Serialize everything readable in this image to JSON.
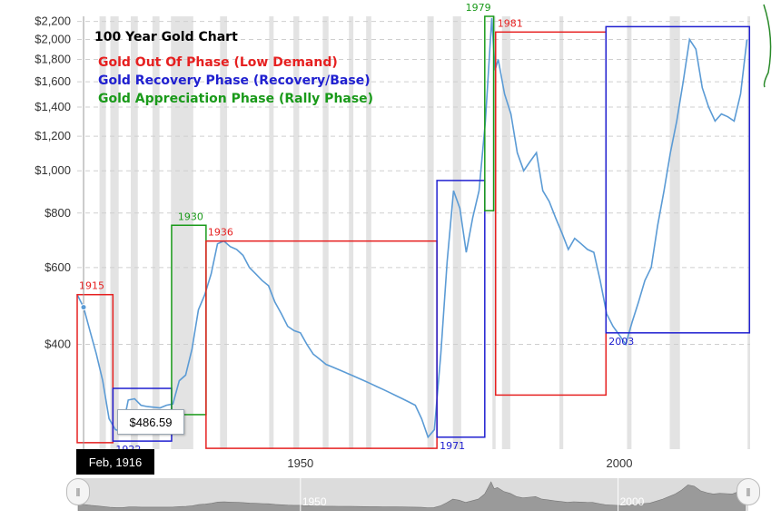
{
  "chart_data": {
    "type": "line",
    "title": "100 Year Gold Chart",
    "legend": [
      {
        "label": "Gold Out Of Phase (Low Demand)",
        "color": "#e62020"
      },
      {
        "label": "Gold Recovery Phase (Recovery/Base)",
        "color": "#2020d0"
      },
      {
        "label": "Gold Appreciation Phase (Rally Phase)",
        "color": "#1a9a1a"
      }
    ],
    "y_ticks": [
      {
        "value": 400,
        "label": "$400"
      },
      {
        "value": 600,
        "label": "$600"
      },
      {
        "value": 800,
        "label": "$800"
      },
      {
        "value": 1000,
        "label": "$1,000"
      },
      {
        "value": 1200,
        "label": "$1,200"
      },
      {
        "value": 1400,
        "label": "$1,400"
      },
      {
        "value": 1600,
        "label": "$1,600"
      },
      {
        "value": 1800,
        "label": "$1,800"
      },
      {
        "value": 2000,
        "label": "$2,000"
      },
      {
        "value": 2200,
        "label": "$2,200"
      }
    ],
    "x_ticks": [
      {
        "value": 1950,
        "label": "1950"
      },
      {
        "value": 2000,
        "label": "2000"
      }
    ],
    "ylim": [
      230,
      2260
    ],
    "xlim": [
      1915,
      2020.5
    ],
    "y_scale": "log",
    "grid": "horizontal-dashed",
    "series": [
      {
        "color": "#5b9bd5",
        "points": [
          [
            1915,
            520
          ],
          [
            1916,
            486.59
          ],
          [
            1917,
            430
          ],
          [
            1918,
            380
          ],
          [
            1919,
            330
          ],
          [
            1920,
            270
          ],
          [
            1921,
            255
          ],
          [
            1922,
            252
          ],
          [
            1923,
            298
          ],
          [
            1924,
            300
          ],
          [
            1925,
            290
          ],
          [
            1926,
            288
          ],
          [
            1927,
            287
          ],
          [
            1928,
            286
          ],
          [
            1929,
            290
          ],
          [
            1930,
            292
          ],
          [
            1931,
            330
          ],
          [
            1932,
            340
          ],
          [
            1933,
            390
          ],
          [
            1934,
            480
          ],
          [
            1935,
            520
          ],
          [
            1936,
            580
          ],
          [
            1937,
            680
          ],
          [
            1938,
            690
          ],
          [
            1939,
            670
          ],
          [
            1940,
            660
          ],
          [
            1941,
            640
          ],
          [
            1942,
            600
          ],
          [
            1943,
            580
          ],
          [
            1944,
            560
          ],
          [
            1945,
            545
          ],
          [
            1946,
            500
          ],
          [
            1947,
            470
          ],
          [
            1948,
            440
          ],
          [
            1949,
            430
          ],
          [
            1950,
            425
          ],
          [
            1951,
            400
          ],
          [
            1952,
            380
          ],
          [
            1953,
            370
          ],
          [
            1954,
            360
          ],
          [
            1955,
            355
          ],
          [
            1956,
            350
          ],
          [
            1957,
            345
          ],
          [
            1958,
            340
          ],
          [
            1959,
            335
          ],
          [
            1960,
            330
          ],
          [
            1961,
            325
          ],
          [
            1962,
            320
          ],
          [
            1963,
            315
          ],
          [
            1964,
            310
          ],
          [
            1965,
            305
          ],
          [
            1966,
            300
          ],
          [
            1967,
            295
          ],
          [
            1968,
            290
          ],
          [
            1969,
            270
          ],
          [
            1970,
            245
          ],
          [
            1971,
            255
          ],
          [
            1972,
            380
          ],
          [
            1973,
            620
          ],
          [
            1974,
            900
          ],
          [
            1975,
            820
          ],
          [
            1976,
            650
          ],
          [
            1977,
            780
          ],
          [
            1978,
            900
          ],
          [
            1979,
            1300
          ],
          [
            1980,
            2240
          ],
          [
            1980.5,
            1700
          ],
          [
            1981,
            1800
          ],
          [
            1982,
            1500
          ],
          [
            1983,
            1350
          ],
          [
            1984,
            1100
          ],
          [
            1985,
            1000
          ],
          [
            1986,
            1050
          ],
          [
            1987,
            1100
          ],
          [
            1988,
            900
          ],
          [
            1989,
            850
          ],
          [
            1990,
            780
          ],
          [
            1991,
            720
          ],
          [
            1992,
            660
          ],
          [
            1993,
            700
          ],
          [
            1994,
            680
          ],
          [
            1995,
            660
          ],
          [
            1996,
            650
          ],
          [
            1997,
            560
          ],
          [
            1998,
            470
          ],
          [
            1999,
            440
          ],
          [
            2000,
            420
          ],
          [
            2001,
            400
          ],
          [
            2002,
            450
          ],
          [
            2003,
            500
          ],
          [
            2004,
            560
          ],
          [
            2005,
            600
          ],
          [
            2006,
            750
          ],
          [
            2007,
            900
          ],
          [
            2008,
            1100
          ],
          [
            2009,
            1300
          ],
          [
            2010,
            1600
          ],
          [
            2011,
            2000
          ],
          [
            2012,
            1900
          ],
          [
            2013,
            1550
          ],
          [
            2014,
            1400
          ],
          [
            2015,
            1300
          ],
          [
            2016,
            1350
          ],
          [
            2017,
            1330
          ],
          [
            2018,
            1300
          ],
          [
            2019,
            1500
          ],
          [
            2020,
            2000
          ]
        ]
      }
    ],
    "phases": [
      {
        "label": "1915",
        "phase": "out",
        "x0": 1915,
        "x1": 1920.6,
        "y0": 238,
        "y1": 520
      },
      {
        "label": "1922",
        "phase": "recovery",
        "x0": 1920.6,
        "x1": 1929.8,
        "y0": 240,
        "y1": 317
      },
      {
        "label": "1930",
        "phase": "rally",
        "x0": 1929.8,
        "x1": 1935.2,
        "y0": 276,
        "y1": 750
      },
      {
        "label": "1936",
        "phase": "out",
        "x0": 1935.2,
        "x1": 1971.4,
        "y0": 231,
        "y1": 690
      },
      {
        "label": "1971",
        "phase": "recovery",
        "x0": 1971.4,
        "x1": 1978.9,
        "y0": 245,
        "y1": 950
      },
      {
        "label": "1979",
        "phase": "rally",
        "x0": 1978.9,
        "x1": 1980.3,
        "y0": 810,
        "y1": 2260
      },
      {
        "label": "1981",
        "phase": "out",
        "x0": 1980.6,
        "x1": 1997.9,
        "y0": 306,
        "y1": 2080
      },
      {
        "label": "2003",
        "phase": "recovery",
        "x0": 1997.9,
        "x1": 2020.4,
        "y0": 425,
        "y1": 2140
      }
    ],
    "recession_bands": [
      [
        1918.5,
        1919.5
      ],
      [
        1920.2,
        1921.5
      ],
      [
        1923.4,
        1924.5
      ],
      [
        1926.8,
        1927.9
      ],
      [
        1929.7,
        1933.2
      ],
      [
        1937.4,
        1938.5
      ],
      [
        1945.1,
        1945.8
      ],
      [
        1948.9,
        1949.8
      ],
      [
        1953.5,
        1954.4
      ],
      [
        1957.6,
        1958.3
      ],
      [
        1960.3,
        1961.1
      ],
      [
        1969.9,
        1970.9
      ],
      [
        1973.9,
        1975.2
      ],
      [
        1980.1,
        1980.6
      ],
      [
        1981.6,
        1982.9
      ],
      [
        1990.6,
        1991.2
      ],
      [
        2001.2,
        2001.9
      ],
      [
        2007.9,
        2009.5
      ],
      [
        2020.1,
        2020.5
      ]
    ],
    "tooltip": {
      "value": "$486.59",
      "date": "Feb, 1916",
      "x": 1916
    }
  },
  "navigator": {
    "labels": [
      {
        "value": 1950,
        "label": "1950"
      },
      {
        "value": 2000,
        "label": "2000"
      }
    ],
    "handle_left_icon": "grip-icon",
    "handle_right_icon": "grip-icon"
  }
}
